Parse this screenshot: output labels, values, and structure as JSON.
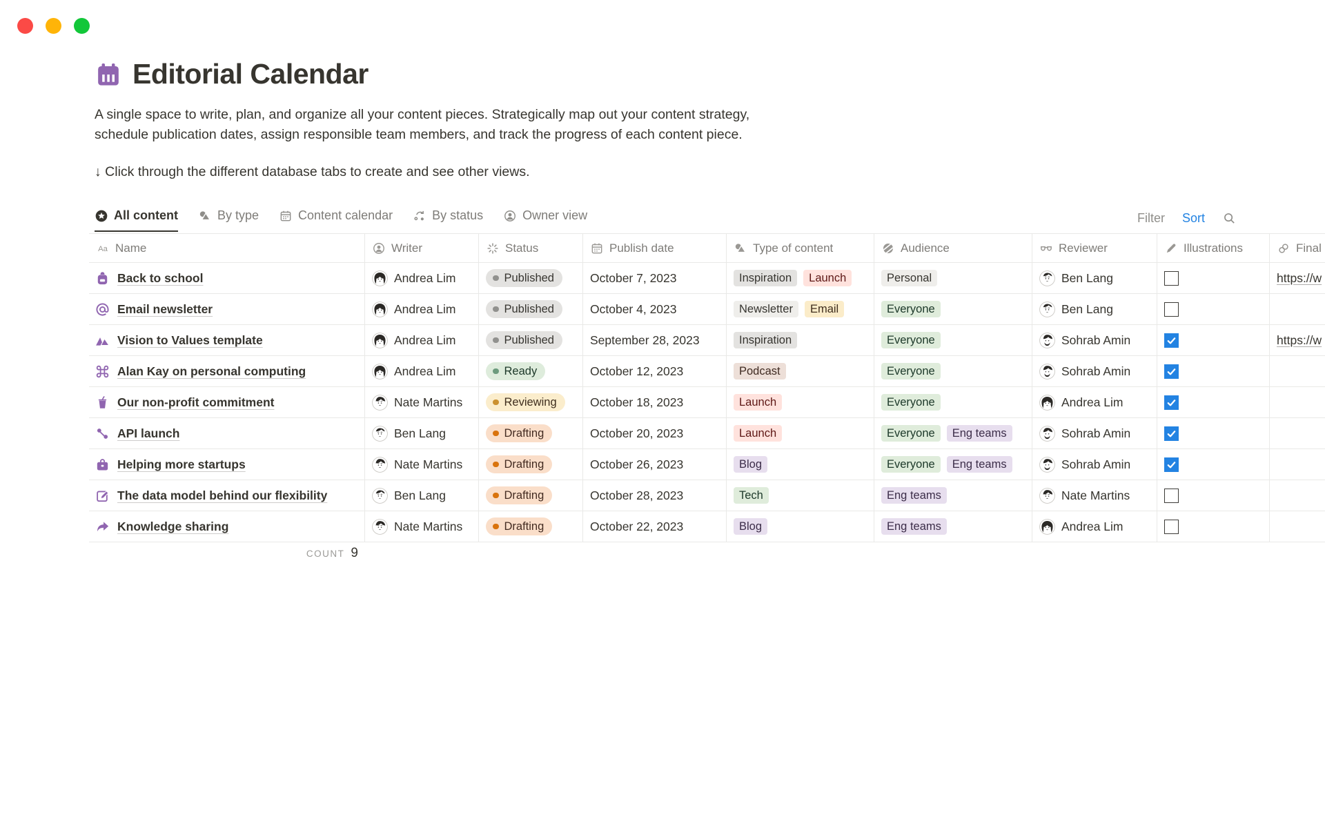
{
  "window": {
    "traffic_lights": [
      {
        "name": "close",
        "color": "#FB4A46"
      },
      {
        "name": "minimize",
        "color": "#FFB408"
      },
      {
        "name": "zoom",
        "color": "#12C739"
      }
    ]
  },
  "page": {
    "icon": "calendar-icon",
    "title": "Editorial Calendar",
    "description": "A single space to write, plan, and organize all your content pieces. Strategically map out your content strategy, schedule publication dates, assign responsible team members, and track the progress of each content piece.",
    "callout": "↓ Click through the different database tabs to create and see other views."
  },
  "toolbar": {
    "tabs": [
      {
        "id": "all-content",
        "icon": "star-circle-icon",
        "label": "All content",
        "active": true
      },
      {
        "id": "by-type",
        "icon": "shapes-icon",
        "label": "By type",
        "active": false
      },
      {
        "id": "content-calendar",
        "icon": "calendar-small-icon",
        "label": "Content calendar",
        "active": false
      },
      {
        "id": "by-status",
        "icon": "status-loop-icon",
        "label": "By status",
        "active": false
      },
      {
        "id": "owner-view",
        "icon": "person-circle-icon",
        "label": "Owner view",
        "active": false
      }
    ],
    "filter_label": "Filter",
    "sort_label": "Sort",
    "sort_color": "#2383E2",
    "search_icon": "search-icon"
  },
  "table": {
    "columns": [
      {
        "key": "name",
        "icon": "aa-icon",
        "label": "Name"
      },
      {
        "key": "writer",
        "icon": "person-circle-icon",
        "label": "Writer"
      },
      {
        "key": "status",
        "icon": "spinner-icon",
        "label": "Status"
      },
      {
        "key": "publish_date",
        "icon": "calendar-small-icon",
        "label": "Publish date"
      },
      {
        "key": "type",
        "icon": "shapes-icon",
        "label": "Type of content"
      },
      {
        "key": "audience",
        "icon": "globe-icon",
        "label": "Audience"
      },
      {
        "key": "reviewer",
        "icon": "glasses-icon",
        "label": "Reviewer"
      },
      {
        "key": "illustrations",
        "icon": "pen-icon",
        "label": "Illustrations"
      },
      {
        "key": "final",
        "icon": "link-icon",
        "label": "Final"
      }
    ],
    "rows": [
      {
        "icon": "backpack-icon",
        "name": "Back to school",
        "writer": {
          "name": "Andrea Lim",
          "avatar": "andrea"
        },
        "status": {
          "label": "Published",
          "tone": "published"
        },
        "publish_date": "October 7, 2023",
        "types": [
          {
            "label": "Inspiration",
            "color": "gray"
          },
          {
            "label": "Launch",
            "color": "red"
          }
        ],
        "audiences": [
          {
            "label": "Personal",
            "color": "lightgray"
          }
        ],
        "reviewer": {
          "name": "Ben Lang",
          "avatar": "ben"
        },
        "illustrations_checked": false,
        "final_link": "https://w"
      },
      {
        "icon": "at-icon",
        "name": "Email newsletter",
        "writer": {
          "name": "Andrea Lim",
          "avatar": "andrea"
        },
        "status": {
          "label": "Published",
          "tone": "published"
        },
        "publish_date": "October 4, 2023",
        "types": [
          {
            "label": "Newsletter",
            "color": "lightgray"
          },
          {
            "label": "Email",
            "color": "yellow"
          }
        ],
        "audiences": [
          {
            "label": "Everyone",
            "color": "green"
          }
        ],
        "reviewer": {
          "name": "Ben Lang",
          "avatar": "ben"
        },
        "illustrations_checked": false,
        "final_link": ""
      },
      {
        "icon": "mountains-icon",
        "name": "Vision to Values template",
        "writer": {
          "name": "Andrea Lim",
          "avatar": "andrea"
        },
        "status": {
          "label": "Published",
          "tone": "published"
        },
        "publish_date": "September 28, 2023",
        "types": [
          {
            "label": "Inspiration",
            "color": "gray"
          }
        ],
        "audiences": [
          {
            "label": "Everyone",
            "color": "green"
          }
        ],
        "reviewer": {
          "name": "Sohrab Amin",
          "avatar": "sohrab"
        },
        "illustrations_checked": true,
        "final_link": "https://w"
      },
      {
        "icon": "command-icon",
        "name": "Alan Kay on personal computing",
        "writer": {
          "name": "Andrea Lim",
          "avatar": "andrea"
        },
        "status": {
          "label": "Ready",
          "tone": "ready"
        },
        "publish_date": "October 12, 2023",
        "types": [
          {
            "label": "Podcast",
            "color": "brown"
          }
        ],
        "audiences": [
          {
            "label": "Everyone",
            "color": "green"
          }
        ],
        "reviewer": {
          "name": "Sohrab Amin",
          "avatar": "sohrab"
        },
        "illustrations_checked": true,
        "final_link": ""
      },
      {
        "icon": "juice-icon",
        "name": "Our non-profit commitment",
        "writer": {
          "name": "Nate Martins",
          "avatar": "nate"
        },
        "status": {
          "label": "Reviewing",
          "tone": "reviewing"
        },
        "publish_date": "October 18, 2023",
        "types": [
          {
            "label": "Launch",
            "color": "red"
          }
        ],
        "audiences": [
          {
            "label": "Everyone",
            "color": "green"
          }
        ],
        "reviewer": {
          "name": "Andrea Lim",
          "avatar": "andrea"
        },
        "illustrations_checked": true,
        "final_link": ""
      },
      {
        "icon": "network-icon",
        "name": "API launch",
        "writer": {
          "name": "Ben Lang",
          "avatar": "ben"
        },
        "status": {
          "label": "Drafting",
          "tone": "drafting"
        },
        "publish_date": "October 20, 2023",
        "types": [
          {
            "label": "Launch",
            "color": "red"
          }
        ],
        "audiences": [
          {
            "label": "Everyone",
            "color": "green"
          },
          {
            "label": "Eng teams",
            "color": "purple"
          }
        ],
        "reviewer": {
          "name": "Sohrab Amin",
          "avatar": "sohrab"
        },
        "illustrations_checked": true,
        "final_link": ""
      },
      {
        "icon": "briefcase-icon",
        "name": "Helping more startups",
        "writer": {
          "name": "Nate Martins",
          "avatar": "nate"
        },
        "status": {
          "label": "Drafting",
          "tone": "drafting"
        },
        "publish_date": "October 26, 2023",
        "types": [
          {
            "label": "Blog",
            "color": "purple"
          }
        ],
        "audiences": [
          {
            "label": "Everyone",
            "color": "green"
          },
          {
            "label": "Eng teams",
            "color": "purple"
          }
        ],
        "reviewer": {
          "name": "Sohrab Amin",
          "avatar": "sohrab"
        },
        "illustrations_checked": true,
        "final_link": ""
      },
      {
        "icon": "edit-icon",
        "name": "The data model behind our flexibility",
        "writer": {
          "name": "Ben Lang",
          "avatar": "ben"
        },
        "status": {
          "label": "Drafting",
          "tone": "drafting"
        },
        "publish_date": "October 28, 2023",
        "types": [
          {
            "label": "Tech",
            "color": "green"
          }
        ],
        "audiences": [
          {
            "label": "Eng teams",
            "color": "purple"
          }
        ],
        "reviewer": {
          "name": "Nate Martins",
          "avatar": "nate"
        },
        "illustrations_checked": false,
        "final_link": ""
      },
      {
        "icon": "share-icon",
        "name": "Knowledge sharing",
        "writer": {
          "name": "Nate Martins",
          "avatar": "nate"
        },
        "status": {
          "label": "Drafting",
          "tone": "drafting"
        },
        "publish_date": "October 22, 2023",
        "types": [
          {
            "label": "Blog",
            "color": "purple"
          }
        ],
        "audiences": [
          {
            "label": "Eng teams",
            "color": "purple"
          }
        ],
        "reviewer": {
          "name": "Andrea Lim",
          "avatar": "andrea"
        },
        "illustrations_checked": false,
        "final_link": ""
      }
    ],
    "count_label": "COUNT",
    "count_value": "9"
  },
  "colors": {
    "accent_purple": "#9065B0",
    "checkbox_blue": "#2383E2",
    "status_tones": {
      "published": {
        "bg": "#E3E2E0",
        "dot": "#91918E",
        "text": "#373530"
      },
      "ready": {
        "bg": "#DEECDC",
        "dot": "#6C9B7D",
        "text": "#1C3829"
      },
      "reviewing": {
        "bg": "#FBEDCC",
        "dot": "#CB912F",
        "text": "#3F2E1E"
      },
      "drafting": {
        "bg": "#FADEC9",
        "dot": "#D9730D",
        "text": "#442C22"
      }
    },
    "tag_colors": {
      "gray": {
        "bg": "#E3E2E0",
        "text": "#373530"
      },
      "lightgray": {
        "bg": "#EFEEEB",
        "text": "#373530"
      },
      "red": {
        "bg": "#FFE2DD",
        "text": "#5D1715"
      },
      "yellow": {
        "bg": "#FBECC9",
        "text": "#3F2E1E"
      },
      "brown": {
        "bg": "#EDDFD8",
        "text": "#3F2B22"
      },
      "green": {
        "bg": "#DFECDB",
        "text": "#1C3829"
      },
      "purple": {
        "bg": "#E7DEEE",
        "text": "#3C2D49"
      }
    }
  }
}
